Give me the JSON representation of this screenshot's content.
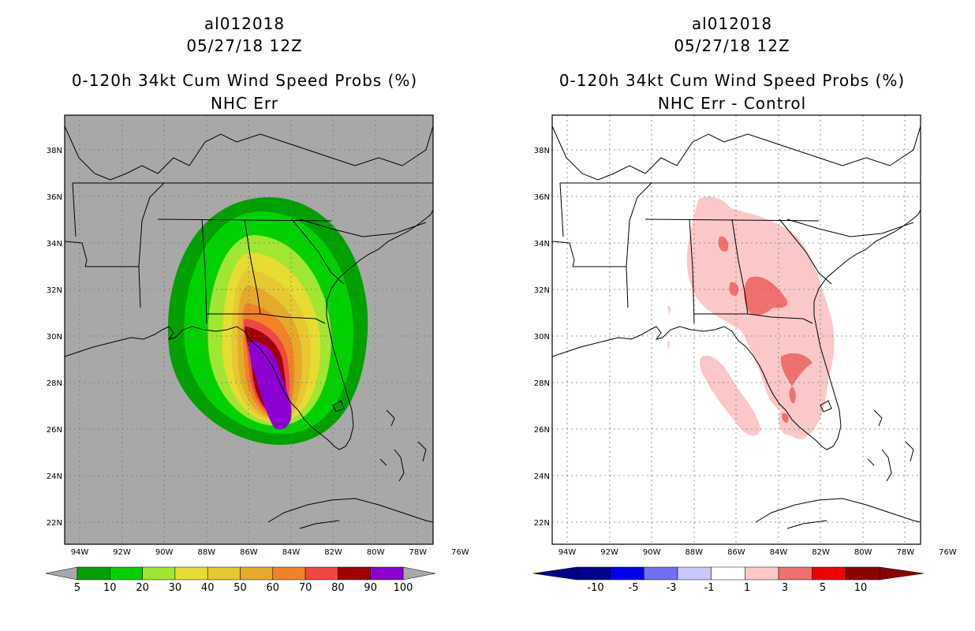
{
  "left_panel": {
    "title_line1": "al012018",
    "title_line2": "05/27/18 12Z",
    "title_line3": "0-120h 34kt Cum Wind Speed Probs (%)",
    "title_line4": "NHC Err",
    "background": "#a8a8a8",
    "colorbar": {
      "colors": [
        "#00a000",
        "#00d200",
        "#a0e632",
        "#e6dc32",
        "#e6c832",
        "#e6aa2a",
        "#f08228",
        "#f04646",
        "#a00000",
        "#8c00d2"
      ],
      "labels": [
        "5",
        "10",
        "20",
        "30",
        "40",
        "50",
        "60",
        "70",
        "80",
        "90",
        "100"
      ]
    }
  },
  "right_panel": {
    "title_line1": "al012018",
    "title_line2": "05/27/18 12Z",
    "title_line3": "0-120h 34kt Cum Wind Speed Probs (%)",
    "title_line4": "NHC Err - Control",
    "background": "#ffffff",
    "colorbar": {
      "colors": [
        "#00008c",
        "#0000f0",
        "#7070f0",
        "#c8c8fa",
        "#ffffff",
        "#fac8c8",
        "#f07070",
        "#f00000",
        "#8c0000"
      ],
      "labels": [
        "-10",
        "-5",
        "-3",
        "-1",
        "1",
        "3",
        "5",
        "10"
      ]
    }
  },
  "map_axes": {
    "lat_labels": [
      "38N",
      "36N",
      "34N",
      "32N",
      "30N",
      "28N",
      "26N",
      "24N",
      "22N"
    ],
    "lon_labels": [
      "94W",
      "92W",
      "90W",
      "88W",
      "86W",
      "84W",
      "82W",
      "80W",
      "78W",
      "76W"
    ]
  }
}
